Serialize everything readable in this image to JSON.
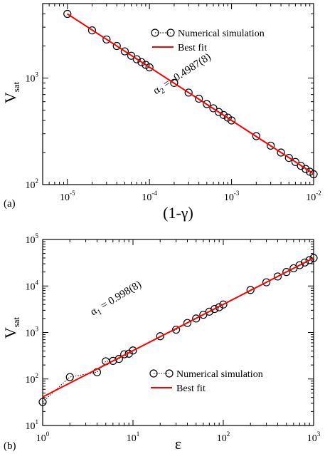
{
  "chart_data": [
    {
      "type": "scatter",
      "panel_label": "(a)",
      "xlabel": "(1-γ)",
      "ylabel": "V",
      "ylabel_sub": "sat",
      "xscale": "log",
      "yscale": "log",
      "xlim": [
        5e-06,
        0.01
      ],
      "ylim": [
        100,
        5000
      ],
      "x_ticks": [
        {
          "base": "10",
          "exp": "-5",
          "value": 1e-05
        },
        {
          "base": "10",
          "exp": "-4",
          "value": 0.0001
        },
        {
          "base": "10",
          "exp": "-3",
          "value": 0.001
        },
        {
          "base": "10",
          "exp": "-2",
          "value": 0.01
        }
      ],
      "y_ticks": [
        {
          "base": "10",
          "exp": "2",
          "value": 100
        },
        {
          "base": "10",
          "exp": "3",
          "value": 1000
        }
      ],
      "legend_position": "top-right",
      "series": [
        {
          "name": "Numerical simulation",
          "marker": "open-circle",
          "line": "dotted",
          "color": "#000000",
          "x": [
            1e-05,
            2e-05,
            3e-05,
            4e-05,
            5e-05,
            6e-05,
            7e-05,
            8e-05,
            9e-05,
            0.0001,
            0.0002,
            0.0003,
            0.0004,
            0.0005,
            0.0006,
            0.0007,
            0.0008,
            0.0009,
            0.001,
            0.002,
            0.003,
            0.004,
            0.005,
            0.006,
            0.007,
            0.008,
            0.009,
            0.01
          ],
          "y": [
            4000,
            2800,
            2300,
            2000,
            1780,
            1620,
            1500,
            1410,
            1330,
            1260,
            900,
            730,
            640,
            570,
            520,
            480,
            450,
            425,
            400,
            285,
            232,
            200,
            178,
            163,
            150,
            140,
            132,
            125
          ]
        },
        {
          "name": "Best fit",
          "line": "solid",
          "color": "#ff0000",
          "x": [
            1e-05,
            0.01
          ],
          "y": [
            4000,
            126.5
          ]
        }
      ],
      "annotation": {
        "text": "α",
        "sub": "2",
        "rest": " = -0.4987(8)"
      }
    },
    {
      "type": "scatter",
      "panel_label": "(b)",
      "xlabel": "ε",
      "ylabel": "V",
      "ylabel_sub": "sat",
      "xscale": "log",
      "yscale": "log",
      "xlim": [
        1,
        1000
      ],
      "ylim": [
        10,
        100000
      ],
      "x_ticks": [
        {
          "base": "10",
          "exp": "0",
          "value": 1
        },
        {
          "base": "10",
          "exp": "1",
          "value": 10
        },
        {
          "base": "10",
          "exp": "2",
          "value": 100
        },
        {
          "base": "10",
          "exp": "3",
          "value": 1000
        }
      ],
      "y_ticks": [
        {
          "base": "10",
          "exp": "1",
          "value": 10
        },
        {
          "base": "10",
          "exp": "2",
          "value": 100
        },
        {
          "base": "10",
          "exp": "3",
          "value": 1000
        },
        {
          "base": "10",
          "exp": "4",
          "value": 10000
        },
        {
          "base": "10",
          "exp": "5",
          "value": 100000
        }
      ],
      "legend_position": "bottom-right",
      "series": [
        {
          "name": "Numerical simulation",
          "marker": "open-circle",
          "line": "dotted",
          "color": "#000000",
          "x": [
            1,
            2,
            4,
            5,
            6,
            7,
            8,
            9,
            10,
            20,
            30,
            40,
            50,
            60,
            70,
            80,
            90,
            100,
            200,
            300,
            400,
            500,
            600,
            700,
            800,
            900,
            1000
          ],
          "y": [
            32,
            110,
            140,
            240,
            245,
            270,
            340,
            350,
            410,
            830,
            1150,
            1600,
            2000,
            2400,
            2800,
            3200,
            3500,
            4000,
            8200,
            12000,
            16000,
            20000,
            24000,
            28000,
            32000,
            36000,
            40000
          ]
        },
        {
          "name": "Best fit",
          "line": "solid",
          "color": "#ff0000",
          "x": [
            1,
            1000
          ],
          "y": [
            41,
            40000
          ]
        }
      ],
      "annotation": {
        "text": "α",
        "sub": "1",
        "rest": " = 0.998(8)"
      }
    }
  ]
}
